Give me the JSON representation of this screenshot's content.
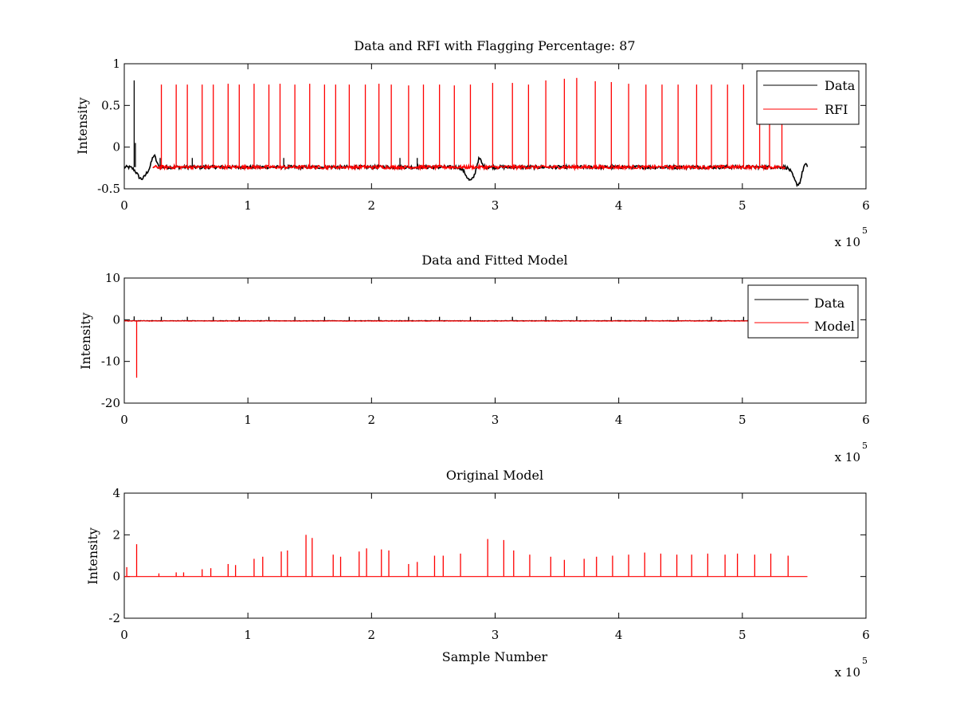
{
  "colors": {
    "data": "#000000",
    "model": "#ff0000",
    "background": "#ffffff"
  },
  "chart_data": [
    {
      "type": "line",
      "title": "Data and RFI with Flagging Percentage: 87",
      "ylabel": "Intensity",
      "xlabel": "",
      "xlim": [
        0,
        600000
      ],
      "ylim": [
        -0.5,
        1
      ],
      "xticks": [
        0,
        1,
        2,
        3,
        4,
        5,
        6
      ],
      "xtick_labels": [
        "0",
        "1",
        "2",
        "3",
        "4",
        "5",
        "6"
      ],
      "yticks": [
        -0.5,
        0,
        0.5,
        1
      ],
      "ytick_labels": [
        "-0.5",
        "0",
        "0.5",
        "1"
      ],
      "x_exponent_label": "x 10",
      "x_exponent": "5",
      "legend_position": "top-right",
      "series": [
        {
          "name": "Data",
          "color": "#000000",
          "baseline": -0.24,
          "x_range": [
            0,
            553000
          ],
          "dips": [
            [
              14000,
              -0.38
            ],
            [
              280000,
              -0.4
            ],
            [
              545000,
              -0.45
            ]
          ],
          "bumps": [
            [
              24000,
              -0.1
            ],
            [
              287000,
              -0.12
            ],
            [
              550000,
              -0.15
            ]
          ],
          "spike_x": [
            8000,
            9000,
            29000,
            55000,
            129000,
            223000,
            237000
          ],
          "spike_y": [
            0.8,
            0.05,
            -0.13,
            -0.13,
            -0.13,
            -0.13,
            -0.13
          ]
        },
        {
          "name": "RFI",
          "color": "#ff0000",
          "baseline": -0.24,
          "x_range": [
            23000,
            535000
          ],
          "spike_x": [
            30000,
            42000,
            51000,
            63000,
            72000,
            84000,
            93000,
            105000,
            117000,
            126000,
            138000,
            150000,
            162000,
            171000,
            182000,
            195000,
            206000,
            216000,
            230000,
            242000,
            255000,
            267000,
            280000,
            298000,
            314000,
            327000,
            341000,
            356000,
            366000,
            381000,
            394000,
            408000,
            422000,
            435000,
            448000,
            463000,
            475000,
            488000,
            501000,
            514000,
            522000,
            532000
          ],
          "spike_y": [
            0.75,
            0.75,
            0.75,
            0.75,
            0.75,
            0.76,
            0.75,
            0.76,
            0.75,
            0.76,
            0.75,
            0.76,
            0.75,
            0.75,
            0.75,
            0.75,
            0.76,
            0.75,
            0.74,
            0.75,
            0.75,
            0.74,
            0.75,
            0.77,
            0.77,
            0.75,
            0.8,
            0.82,
            0.83,
            0.79,
            0.78,
            0.76,
            0.75,
            0.75,
            0.75,
            0.75,
            0.75,
            0.75,
            0.75,
            0.75,
            0.75,
            0.75
          ]
        }
      ]
    },
    {
      "type": "line",
      "title": "Data and Fitted Model",
      "ylabel": "Intensity",
      "xlabel": "",
      "xlim": [
        0,
        600000
      ],
      "ylim": [
        -20,
        10
      ],
      "xticks": [
        0,
        1,
        2,
        3,
        4,
        5,
        6
      ],
      "xtick_labels": [
        "0",
        "1",
        "2",
        "3",
        "4",
        "5",
        "6"
      ],
      "yticks": [
        -20,
        -10,
        0,
        10
      ],
      "ytick_labels": [
        "-20",
        "-10",
        "0",
        "10"
      ],
      "x_exponent_label": "x 10",
      "x_exponent": "5",
      "legend_position": "top-right",
      "series": [
        {
          "name": "Data",
          "color": "#000000",
          "baseline": -0.25,
          "x_range": [
            0,
            553000
          ],
          "spike_x": [
            8000,
            30000,
            51000,
            72000,
            93000,
            117000,
            138000,
            162000,
            182000,
            206000,
            230000,
            255000,
            280000,
            314000,
            341000,
            366000,
            394000,
            422000,
            448000,
            475000,
            501000,
            532000
          ],
          "spike_y": [
            0.8,
            0.7,
            0.7,
            0.7,
            0.7,
            0.7,
            0.7,
            0.7,
            0.7,
            0.7,
            0.7,
            0.7,
            0.7,
            0.7,
            0.8,
            0.8,
            0.7,
            0.7,
            0.7,
            0.7,
            0.7,
            0.7
          ]
        },
        {
          "name": "Model",
          "color": "#ff0000",
          "baseline": -0.3,
          "x_range": [
            0,
            553000
          ],
          "spike_x": [
            10000
          ],
          "spike_y": [
            -13.9
          ]
        }
      ]
    },
    {
      "type": "line",
      "title": "Original Model",
      "ylabel": "Intensity",
      "xlabel": "Sample Number",
      "xlim": [
        0,
        600000
      ],
      "ylim": [
        -2,
        4
      ],
      "xticks": [
        0,
        1,
        2,
        3,
        4,
        5,
        6
      ],
      "xtick_labels": [
        "0",
        "1",
        "2",
        "3",
        "4",
        "5",
        "6"
      ],
      "yticks": [
        -2,
        0,
        2,
        4
      ],
      "ytick_labels": [
        "-2",
        "0",
        "2",
        "4"
      ],
      "x_exponent_label": "x 10",
      "x_exponent": "5",
      "legend_position": "none",
      "series": [
        {
          "name": "Original Model",
          "color": "#ff0000",
          "baseline": 0,
          "x_range": [
            0,
            553000
          ],
          "spike_x": [
            2000,
            10000,
            28000,
            42000,
            48000,
            63000,
            70000,
            84000,
            90000,
            105000,
            112000,
            127000,
            132000,
            147000,
            152000,
            169000,
            175000,
            190000,
            196000,
            208000,
            214000,
            230000,
            237000,
            251000,
            258000,
            272000,
            294000,
            307000,
            315000,
            328000,
            345000,
            356000,
            372000,
            382000,
            395000,
            408000,
            421000,
            434000,
            447000,
            459000,
            472000,
            486000,
            496000,
            510000,
            523000,
            537000
          ],
          "spike_y": [
            0.45,
            1.55,
            0.15,
            0.2,
            0.2,
            0.35,
            0.4,
            0.6,
            0.55,
            0.85,
            0.95,
            1.2,
            1.25,
            2.0,
            1.85,
            1.05,
            0.95,
            1.2,
            1.35,
            1.3,
            1.25,
            0.6,
            0.7,
            1.0,
            1.0,
            1.1,
            1.8,
            1.75,
            1.25,
            1.05,
            0.95,
            0.8,
            0.85,
            0.95,
            1.0,
            1.05,
            1.15,
            1.1,
            1.05,
            1.05,
            1.1,
            1.05,
            1.1,
            1.05,
            1.1,
            1.0
          ]
        }
      ]
    }
  ]
}
